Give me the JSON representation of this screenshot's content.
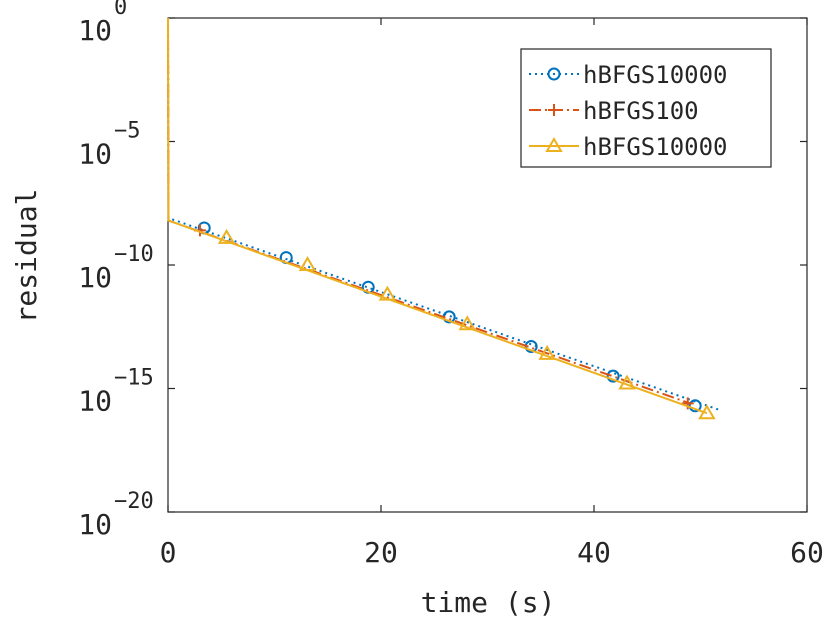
{
  "chart_data": {
    "type": "line",
    "xlabel": "time (s)",
    "ylabel": "residual",
    "xlim": [
      0,
      60
    ],
    "ylim_log10": [
      -20,
      0
    ],
    "yscale": "log",
    "grid": false,
    "legend_placement": "top-right",
    "x_ticks": [
      {
        "value": 0,
        "label": "0"
      },
      {
        "value": 20,
        "label": "20"
      },
      {
        "value": 40,
        "label": "40"
      },
      {
        "value": 60,
        "label": "60"
      }
    ],
    "y_ticks": [
      {
        "exp": 0,
        "base": "10",
        "sup": "0"
      },
      {
        "exp": -5,
        "base": "10",
        "sup": "−5"
      },
      {
        "exp": -10,
        "base": "10",
        "sup": "−10"
      },
      {
        "exp": -15,
        "base": "10",
        "sup": "−15"
      },
      {
        "exp": -20,
        "base": "10",
        "sup": "−20"
      }
    ],
    "series": [
      {
        "name": "hBFGS10000",
        "color": "#0072BD",
        "line_style": "dotted",
        "marker": "circle",
        "log10_points": [
          [
            0,
            0
          ],
          [
            0.05,
            -8.1
          ],
          [
            52,
            -15.9
          ]
        ],
        "marker_log10_points": [
          [
            3.4,
            -8.5
          ],
          [
            11.1,
            -9.7
          ],
          [
            18.8,
            -10.9
          ],
          [
            26.4,
            -12.1
          ],
          [
            34.1,
            -13.3
          ],
          [
            41.8,
            -14.5
          ],
          [
            49.5,
            -15.7
          ]
        ]
      },
      {
        "name": "hBFGS100",
        "color": "#D95319",
        "line_style": "dashdot",
        "marker": "plus",
        "log10_points": [
          [
            0,
            0
          ],
          [
            0.05,
            -8.2
          ],
          [
            49,
            -15.6
          ]
        ],
        "marker_log10_points": [
          [
            3.0,
            -8.6
          ],
          [
            48.8,
            -15.6
          ]
        ]
      },
      {
        "name": "hBFGS10000",
        "color": "#EDB120",
        "line_style": "solid",
        "marker": "triangle",
        "log10_points": [
          [
            0,
            0
          ],
          [
            0.05,
            -8.2
          ],
          [
            50.6,
            -16.0
          ]
        ],
        "marker_log10_points": [
          [
            5.5,
            -8.9
          ],
          [
            13.1,
            -10.0
          ],
          [
            20.6,
            -11.2
          ],
          [
            28.1,
            -12.4
          ],
          [
            35.6,
            -13.6
          ],
          [
            43.1,
            -14.8
          ],
          [
            50.6,
            -16.0
          ]
        ]
      }
    ]
  }
}
